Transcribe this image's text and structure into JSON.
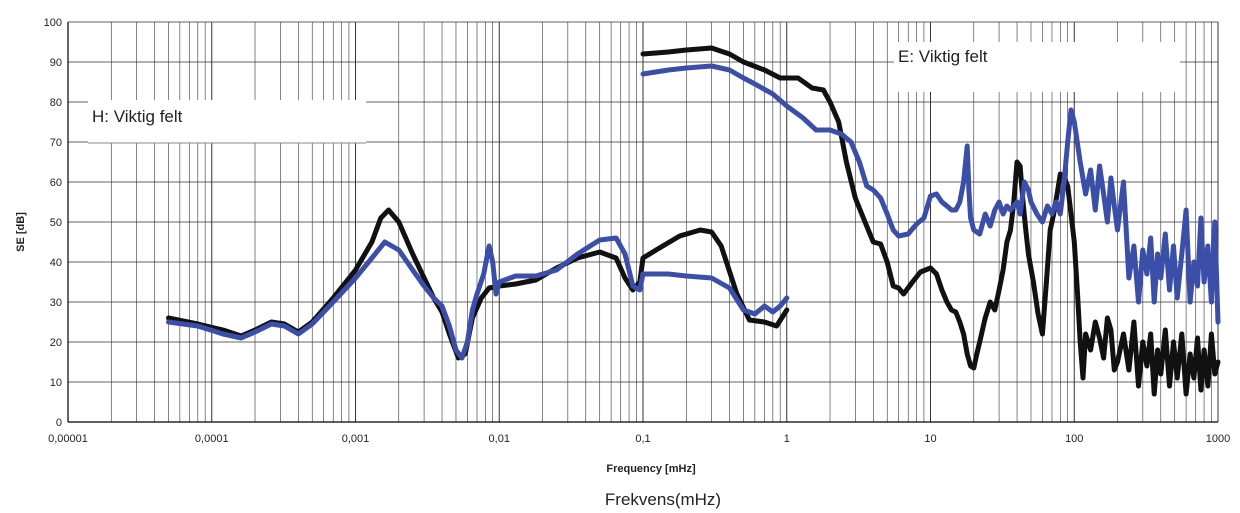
{
  "chart_data": {
    "type": "line",
    "xscale": "log",
    "xlim": [
      1e-05,
      1000
    ],
    "ylim": [
      0,
      100
    ],
    "grid": true,
    "legend": "none",
    "xlabel": "Frequency [mHz]",
    "ylabel": "SE [dB]",
    "caption": "Frekvens(mHz)",
    "x_tick_labels": [
      "0,00001",
      "0,0001",
      "0,001",
      "0,01",
      "0,1",
      "1",
      "10",
      "100",
      "1000"
    ],
    "y_tick_labels": [
      "0",
      "10",
      "20",
      "30",
      "40",
      "50",
      "60",
      "70",
      "80",
      "90",
      "100"
    ],
    "annotations": [
      {
        "text": "H: Viktig felt"
      },
      {
        "text": "E: Viktig felt"
      }
    ],
    "series": [
      {
        "color": "#111111",
        "segments": [
          [
            [
              5e-05,
              26
            ],
            [
              8e-05,
              24.5
            ],
            [
              0.00012,
              23
            ],
            [
              0.00016,
              21.5
            ],
            [
              0.0002,
              23
            ],
            [
              0.00026,
              25
            ],
            [
              0.00032,
              24.5
            ],
            [
              0.0004,
              22.5
            ],
            [
              0.0005,
              25
            ],
            [
              0.0007,
              31
            ],
            [
              0.001,
              38
            ],
            [
              0.0013,
              45
            ],
            [
              0.0015,
              51
            ],
            [
              0.0017,
              53
            ],
            [
              0.002,
              50
            ],
            [
              0.0025,
              42
            ],
            [
              0.003,
              36
            ],
            [
              0.0035,
              31
            ],
            [
              0.004,
              27.5
            ],
            [
              0.0045,
              22
            ],
            [
              0.0052,
              16
            ],
            [
              0.0058,
              17
            ],
            [
              0.0065,
              26
            ],
            [
              0.0075,
              31
            ],
            [
              0.0085,
              33.5
            ],
            [
              0.01,
              34
            ],
            [
              0.013,
              34.5
            ],
            [
              0.018,
              35.5
            ],
            [
              0.025,
              38.5
            ],
            [
              0.035,
              41
            ],
            [
              0.05,
              42.5
            ],
            [
              0.065,
              41
            ],
            [
              0.075,
              36
            ],
            [
              0.085,
              33
            ],
            [
              0.095,
              35
            ],
            [
              0.1,
              41
            ],
            [
              0.13,
              43.5
            ],
            [
              0.18,
              46.5
            ],
            [
              0.25,
              48
            ],
            [
              0.3,
              47.5
            ],
            [
              0.35,
              44
            ],
            [
              0.45,
              32
            ],
            [
              0.55,
              25.5
            ],
            [
              0.7,
              25
            ],
            [
              0.85,
              24
            ],
            [
              1.0,
              28
            ]
          ],
          [
            [
              0.1,
              92
            ],
            [
              0.15,
              92.5
            ],
            [
              0.2,
              93
            ],
            [
              0.3,
              93.5
            ],
            [
              0.4,
              92
            ],
            [
              0.5,
              90
            ],
            [
              0.7,
              88
            ],
            [
              0.9,
              86
            ],
            [
              1.2,
              86
            ],
            [
              1.5,
              83.5
            ],
            [
              1.8,
              83
            ],
            [
              2.0,
              80
            ],
            [
              2.3,
              75
            ],
            [
              2.6,
              65
            ],
            [
              3.0,
              56
            ],
            [
              3.5,
              50
            ],
            [
              4.0,
              45
            ],
            [
              4.5,
              44.5
            ],
            [
              5.0,
              40
            ],
            [
              5.5,
              34
            ],
            [
              6.0,
              33.5
            ],
            [
              6.5,
              32
            ],
            [
              7.5,
              35
            ],
            [
              8.5,
              37.5
            ],
            [
              10,
              38.5
            ],
            [
              11,
              37
            ],
            [
              12,
              33
            ],
            [
              13,
              30
            ],
            [
              14,
              28
            ],
            [
              15,
              27.5
            ],
            [
              16,
              25
            ],
            [
              17,
              22
            ],
            [
              18,
              17
            ],
            [
              19,
              14
            ],
            [
              20,
              13.5
            ],
            [
              21,
              17
            ],
            [
              22,
              20
            ],
            [
              24,
              26
            ],
            [
              26,
              30
            ],
            [
              28,
              28
            ],
            [
              30,
              33
            ],
            [
              32,
              38
            ],
            [
              34,
              45
            ],
            [
              36,
              48
            ],
            [
              38,
              55
            ],
            [
              40,
              65
            ],
            [
              42,
              64
            ],
            [
              44,
              55
            ],
            [
              46,
              48
            ],
            [
              48,
              42
            ],
            [
              52,
              35
            ],
            [
              56,
              27
            ],
            [
              60,
              22
            ],
            [
              64,
              35
            ],
            [
              68,
              48
            ],
            [
              72,
              52
            ],
            [
              76,
              57
            ],
            [
              80,
              62
            ],
            [
              85,
              61
            ],
            [
              90,
              59
            ],
            [
              95,
              52
            ],
            [
              100,
              45
            ],
            [
              105,
              33
            ],
            [
              110,
              20
            ],
            [
              115,
              11
            ],
            [
              120,
              22
            ],
            [
              130,
              18
            ],
            [
              140,
              25
            ],
            [
              150,
              21
            ],
            [
              160,
              16
            ],
            [
              170,
              26
            ],
            [
              180,
              23
            ],
            [
              190,
              13
            ],
            [
              200,
              15
            ],
            [
              220,
              22
            ],
            [
              240,
              13
            ],
            [
              260,
              25
            ],
            [
              280,
              9
            ],
            [
              300,
              20
            ],
            [
              320,
              14
            ],
            [
              340,
              22
            ],
            [
              360,
              7
            ],
            [
              380,
              18
            ],
            [
              400,
              12
            ],
            [
              430,
              23
            ],
            [
              460,
              9
            ],
            [
              490,
              20
            ],
            [
              520,
              11
            ],
            [
              560,
              22
            ],
            [
              600,
              7
            ],
            [
              640,
              17
            ],
            [
              680,
              11
            ],
            [
              720,
              21
            ],
            [
              760,
              8
            ],
            [
              800,
              18
            ],
            [
              850,
              9
            ],
            [
              900,
              22
            ],
            [
              950,
              12
            ],
            [
              1000,
              15
            ]
          ]
        ]
      },
      {
        "color": "#3c4fa8",
        "segments": [
          [
            [
              5e-05,
              25
            ],
            [
              8e-05,
              24
            ],
            [
              0.00012,
              22
            ],
            [
              0.00016,
              21
            ],
            [
              0.0002,
              22.5
            ],
            [
              0.00026,
              24.5
            ],
            [
              0.00032,
              24
            ],
            [
              0.0004,
              22
            ],
            [
              0.0005,
              24.5
            ],
            [
              0.0007,
              30
            ],
            [
              0.001,
              36
            ],
            [
              0.0013,
              41
            ],
            [
              0.0016,
              45
            ],
            [
              0.002,
              43
            ],
            [
              0.0025,
              38
            ],
            [
              0.003,
              34
            ],
            [
              0.0035,
              31
            ],
            [
              0.004,
              29
            ],
            [
              0.0045,
              24
            ],
            [
              0.005,
              18
            ],
            [
              0.0055,
              16
            ],
            [
              0.006,
              20
            ],
            [
              0.0065,
              28
            ],
            [
              0.007,
              32
            ],
            [
              0.0078,
              37
            ],
            [
              0.0085,
              44
            ],
            [
              0.009,
              40
            ],
            [
              0.0095,
              32
            ],
            [
              0.01,
              35
            ],
            [
              0.013,
              36.5
            ],
            [
              0.018,
              36.5
            ],
            [
              0.025,
              38
            ],
            [
              0.035,
              42
            ],
            [
              0.05,
              45.5
            ],
            [
              0.065,
              46
            ],
            [
              0.075,
              42
            ],
            [
              0.085,
              34
            ],
            [
              0.095,
              33
            ],
            [
              0.1,
              37
            ],
            [
              0.15,
              37
            ],
            [
              0.2,
              36.5
            ],
            [
              0.3,
              36
            ],
            [
              0.4,
              33.5
            ],
            [
              0.5,
              28
            ],
            [
              0.6,
              27
            ],
            [
              0.7,
              29
            ],
            [
              0.8,
              27.5
            ],
            [
              0.9,
              29
            ],
            [
              1.0,
              31
            ]
          ],
          [
            [
              0.1,
              87
            ],
            [
              0.15,
              88
            ],
            [
              0.2,
              88.5
            ],
            [
              0.3,
              89
            ],
            [
              0.4,
              88
            ],
            [
              0.5,
              86
            ],
            [
              0.6,
              84.5
            ],
            [
              0.8,
              82
            ],
            [
              1.0,
              79
            ],
            [
              1.3,
              76
            ],
            [
              1.6,
              73
            ],
            [
              2.0,
              73
            ],
            [
              2.4,
              72
            ],
            [
              2.8,
              70
            ],
            [
              3.2,
              65
            ],
            [
              3.6,
              59
            ],
            [
              4.0,
              58
            ],
            [
              4.5,
              56
            ],
            [
              5.0,
              52
            ],
            [
              5.5,
              48
            ],
            [
              6.0,
              46.5
            ],
            [
              7.0,
              47
            ],
            [
              8.0,
              49.5
            ],
            [
              9.0,
              51
            ],
            [
              10,
              56.5
            ],
            [
              11,
              57
            ],
            [
              12,
              55
            ],
            [
              13,
              54
            ],
            [
              14,
              53
            ],
            [
              15,
              53
            ],
            [
              16,
              55
            ],
            [
              17,
              60
            ],
            [
              18,
              69
            ],
            [
              18.5,
              58
            ],
            [
              19,
              51
            ],
            [
              20,
              48
            ],
            [
              22,
              47
            ],
            [
              24,
              52
            ],
            [
              26,
              49
            ],
            [
              28,
              53
            ],
            [
              30,
              55
            ],
            [
              32,
              52
            ],
            [
              34,
              54
            ],
            [
              36,
              53
            ],
            [
              38,
              54
            ],
            [
              40,
              55
            ],
            [
              42,
              52
            ],
            [
              45,
              60
            ],
            [
              48,
              58
            ],
            [
              50,
              55
            ],
            [
              55,
              52
            ],
            [
              60,
              50
            ],
            [
              65,
              54
            ],
            [
              70,
              52
            ],
            [
              75,
              55
            ],
            [
              80,
              52
            ],
            [
              85,
              60
            ],
            [
              90,
              70
            ],
            [
              95,
              78
            ],
            [
              100,
              75
            ],
            [
              110,
              65
            ],
            [
              120,
              57
            ],
            [
              130,
              63
            ],
            [
              140,
              53
            ],
            [
              150,
              64
            ],
            [
              160,
              57
            ],
            [
              170,
              50
            ],
            [
              180,
              61
            ],
            [
              190,
              54
            ],
            [
              200,
              48
            ],
            [
              220,
              60
            ],
            [
              240,
              36
            ],
            [
              260,
              44
            ],
            [
              280,
              30
            ],
            [
              300,
              43
            ],
            [
              320,
              37
            ],
            [
              340,
              46
            ],
            [
              360,
              30
            ],
            [
              380,
              42
            ],
            [
              400,
              36
            ],
            [
              430,
              47
            ],
            [
              460,
              33
            ],
            [
              490,
              44
            ],
            [
              520,
              31
            ],
            [
              560,
              42
            ],
            [
              600,
              53
            ],
            [
              640,
              30
            ],
            [
              680,
              40
            ],
            [
              720,
              34
            ],
            [
              760,
              51
            ],
            [
              800,
              35
            ],
            [
              850,
              44
            ],
            [
              900,
              30
            ],
            [
              950,
              50
            ],
            [
              1000,
              25
            ]
          ]
        ]
      }
    ]
  }
}
